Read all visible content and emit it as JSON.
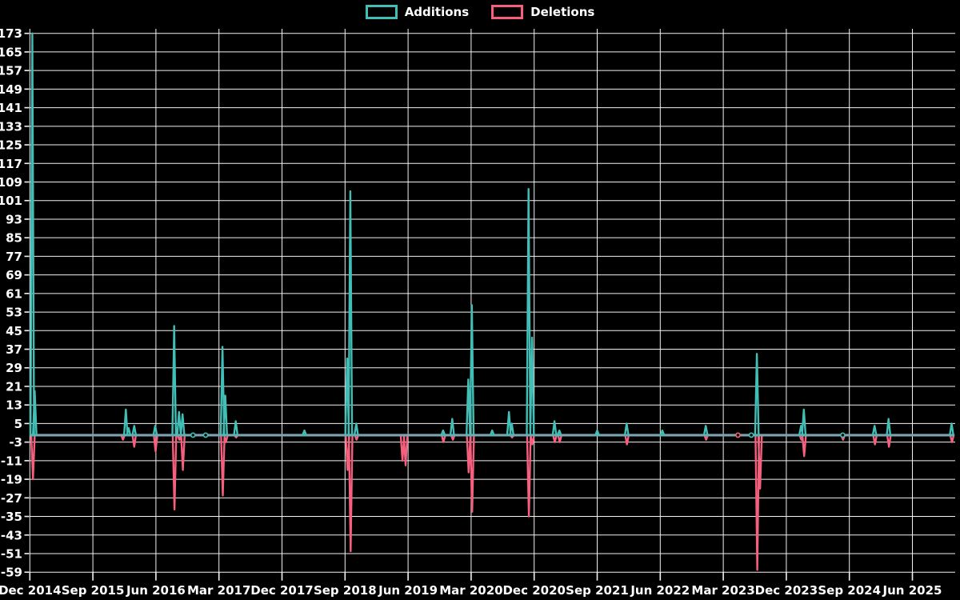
{
  "legend": {
    "items": [
      {
        "label": "Additions",
        "color": "#41bfb7"
      },
      {
        "label": "Deletions",
        "color": "#f75f7e"
      }
    ]
  },
  "colors": {
    "background": "#000000",
    "grid": "#f2f2f2",
    "tick_text": "#ffffff",
    "zero_baseline": "#7ba4b0"
  },
  "chart_data": {
    "type": "line",
    "title": "",
    "xlabel": "",
    "ylabel": "",
    "legend_position": "top-center",
    "grid": true,
    "x_axis": {
      "tick_labels": [
        "Dec 2014",
        "Sep 2015",
        "Jun 2016",
        "Mar 2017",
        "Dec 2017",
        "Sep 2018",
        "Jun 2019",
        "Mar 2020",
        "Dec 2020",
        "Sep 2021",
        "Jun 2022",
        "Mar 2023",
        "Dec 2023",
        "Sep 2024",
        "Jun 2025"
      ],
      "months_between_ticks": 9,
      "months_total_span": 132
    },
    "y_axis": {
      "min": -59,
      "max": 173,
      "step": 8,
      "tick_labels": [
        "173",
        "165",
        "157",
        "149",
        "141",
        "133",
        "125",
        "117",
        "109",
        "101",
        "93",
        "85",
        "77",
        "69",
        "61",
        "53",
        "45",
        "37",
        "29",
        "21",
        "13",
        "5",
        "-3",
        "-11",
        "-19",
        "-27",
        "-35",
        "-43",
        "-51",
        "-59"
      ]
    },
    "zero_baseline": 0,
    "series": [
      {
        "name": "Additions",
        "color": "#41bfb7",
        "points_months_vs_value": [
          [
            0.35,
            173
          ],
          [
            0.7,
            19
          ],
          [
            13.7,
            11
          ],
          [
            14.1,
            3
          ],
          [
            14.9,
            4
          ],
          [
            17.9,
            4
          ],
          [
            20.6,
            47
          ],
          [
            21.3,
            10
          ],
          [
            21.8,
            9
          ],
          [
            27.5,
            38
          ],
          [
            27.9,
            17
          ],
          [
            29.4,
            6
          ],
          [
            39.2,
            2
          ],
          [
            45.3,
            33
          ],
          [
            45.75,
            105
          ],
          [
            46.6,
            5
          ],
          [
            59.0,
            2
          ],
          [
            60.3,
            7
          ],
          [
            62.6,
            24
          ],
          [
            63.1,
            56
          ],
          [
            66.0,
            2
          ],
          [
            68.4,
            10
          ],
          [
            68.8,
            5
          ],
          [
            71.2,
            106
          ],
          [
            71.7,
            42
          ],
          [
            74.9,
            6
          ],
          [
            75.6,
            2
          ],
          [
            81.0,
            2
          ],
          [
            85.2,
            5
          ],
          [
            90.3,
            2
          ],
          [
            96.5,
            4
          ],
          [
            103.8,
            35
          ],
          [
            110.1,
            4
          ],
          [
            110.5,
            11
          ],
          [
            120.6,
            4
          ],
          [
            122.6,
            7
          ],
          [
            131.6,
            5
          ]
        ]
      },
      {
        "name": "Deletions",
        "color": "#f75f7e",
        "points_months_vs_value": [
          [
            0.45,
            -19
          ],
          [
            13.3,
            -2
          ],
          [
            14.9,
            -5
          ],
          [
            17.95,
            -7
          ],
          [
            20.65,
            -32
          ],
          [
            21.35,
            -2
          ],
          [
            21.85,
            -15
          ],
          [
            27.55,
            -26
          ],
          [
            28.0,
            -3
          ],
          [
            29.45,
            -1
          ],
          [
            45.35,
            -15
          ],
          [
            45.8,
            -50
          ],
          [
            46.65,
            -2
          ],
          [
            53.2,
            -11
          ],
          [
            53.65,
            -13
          ],
          [
            59.05,
            -3
          ],
          [
            60.4,
            -2
          ],
          [
            62.65,
            -16
          ],
          [
            63.15,
            -33
          ],
          [
            68.85,
            -1
          ],
          [
            71.25,
            -35
          ],
          [
            71.75,
            -4
          ],
          [
            74.95,
            -3
          ],
          [
            75.65,
            -3
          ],
          [
            85.25,
            -4
          ],
          [
            96.55,
            -2
          ],
          [
            103.85,
            -58
          ],
          [
            104.25,
            -23
          ],
          [
            110.15,
            -2
          ],
          [
            110.55,
            -9
          ],
          [
            116.1,
            -2
          ],
          [
            120.65,
            -4
          ],
          [
            122.65,
            -5
          ],
          [
            131.65,
            -3
          ]
        ]
      }
    ],
    "dot_markers": [
      {
        "m": 23.3,
        "series": "Additions"
      },
      {
        "m": 25.1,
        "series": "Additions"
      },
      {
        "m": 101.1,
        "series": "Deletions"
      },
      {
        "m": 103.0,
        "series": "Additions"
      },
      {
        "m": 116.05,
        "series": "Additions"
      }
    ]
  }
}
